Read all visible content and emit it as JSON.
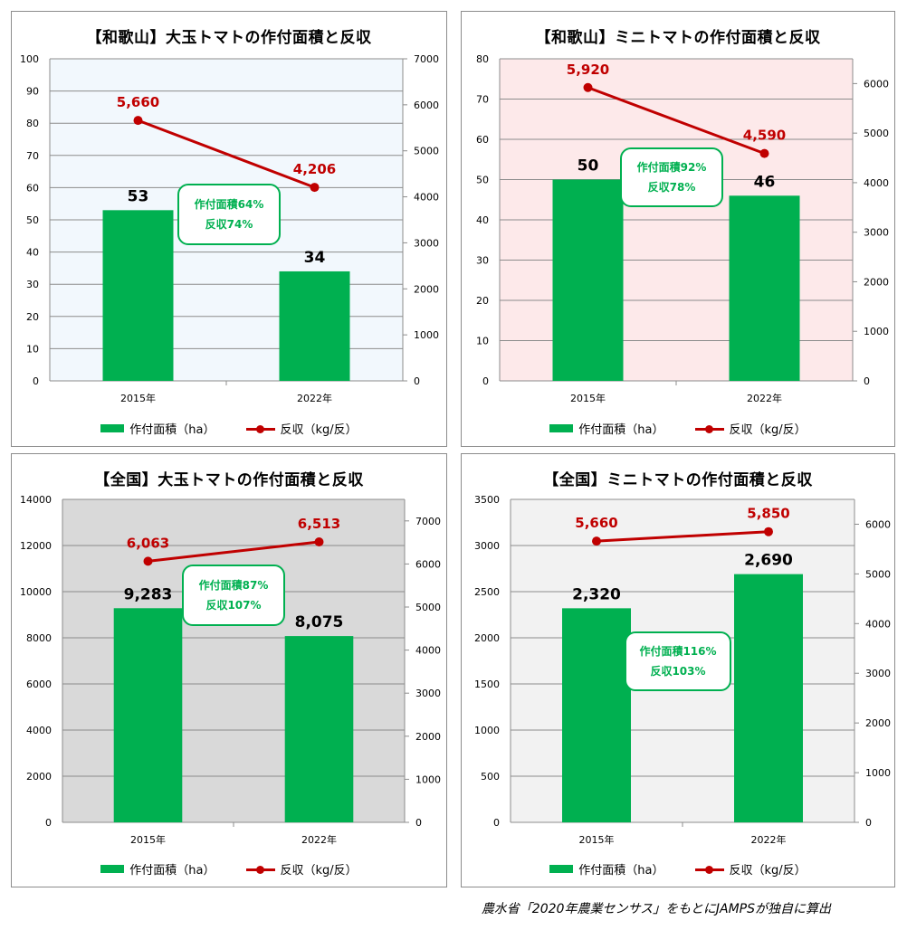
{
  "colors": {
    "bar": "#00b050",
    "line": "#c00000",
    "callout": "#00b050",
    "grid": "#8c8c8c"
  },
  "legend": {
    "bar_label": "作付面積（ha）",
    "line_label": "反収（kg/反）"
  },
  "source_note": "農水省「2020年農業センサス」をもとにJAMPSが独自に算出",
  "chart_data": [
    {
      "type": "bar",
      "title": "【和歌山】大玉トマトの作付面積と反収",
      "categories": [
        "2015年",
        "2022年"
      ],
      "plot_bg": "#f2f8fd",
      "y_left": {
        "min": 0,
        "max": 100,
        "step": 10
      },
      "y_right": {
        "min": 0,
        "max": 7000,
        "step": 1000
      },
      "series": [
        {
          "name": "作付面積（ha）",
          "type": "bar",
          "axis": "left",
          "values": [
            53,
            34
          ],
          "labels": [
            "53",
            "34"
          ]
        },
        {
          "name": "反収（kg/反）",
          "type": "line",
          "axis": "right",
          "values": [
            5660,
            4206
          ],
          "labels": [
            "5,660",
            "4,206"
          ]
        }
      ],
      "callout": {
        "line1": "作付面積64%",
        "line2": "反収74%"
      }
    },
    {
      "type": "bar",
      "title": "【和歌山】ミニトマトの作付面積と反収",
      "categories": [
        "2015年",
        "2022年"
      ],
      "plot_bg": "#fde9ea",
      "y_left": {
        "min": 0,
        "max": 80,
        "step": 10
      },
      "y_right": {
        "min": 0,
        "max": 6500,
        "step": 1000
      },
      "series": [
        {
          "name": "作付面積（ha）",
          "type": "bar",
          "axis": "left",
          "values": [
            50,
            46
          ],
          "labels": [
            "50",
            "46"
          ]
        },
        {
          "name": "反収（kg/反）",
          "type": "line",
          "axis": "right",
          "values": [
            5920,
            4590
          ],
          "labels": [
            "5,920",
            "4,590"
          ]
        }
      ],
      "callout": {
        "line1": "作付面積92%",
        "line2": "反収78%"
      }
    },
    {
      "type": "bar",
      "title": "【全国】大玉トマトの作付面積と反収",
      "categories": [
        "2015年",
        "2022年"
      ],
      "plot_bg": "#d9d9d9",
      "y_left": {
        "min": 0,
        "max": 14000,
        "step": 2000
      },
      "y_right": {
        "min": 0,
        "max": 7500,
        "step": 1000
      },
      "series": [
        {
          "name": "作付面積（ha）",
          "type": "bar",
          "axis": "left",
          "values": [
            9283,
            8075
          ],
          "labels": [
            "9,283",
            "8,075"
          ]
        },
        {
          "name": "反収（kg/反）",
          "type": "line",
          "axis": "right",
          "values": [
            6063,
            6513
          ],
          "labels": [
            "6,063",
            "6,513"
          ]
        }
      ],
      "callout": {
        "line1": "作付面積87%",
        "line2": "反収107%"
      }
    },
    {
      "type": "bar",
      "title": "【全国】ミニトマトの作付面積と反収",
      "categories": [
        "2015年",
        "2022年"
      ],
      "plot_bg": "#f2f2f2",
      "y_left": {
        "min": 0,
        "max": 3500,
        "step": 500
      },
      "y_right": {
        "min": 0,
        "max": 6500,
        "step": 1000
      },
      "series": [
        {
          "name": "作付面積（ha）",
          "type": "bar",
          "axis": "left",
          "values": [
            2320,
            2690
          ],
          "labels": [
            "2,320",
            "2,690"
          ]
        },
        {
          "name": "反収（kg/反）",
          "type": "line",
          "axis": "right",
          "values": [
            5660,
            5850
          ],
          "labels": [
            "5,660",
            "5,850"
          ]
        }
      ],
      "callout": {
        "line1": "作付面積116%",
        "line2": "反収103%"
      }
    }
  ]
}
